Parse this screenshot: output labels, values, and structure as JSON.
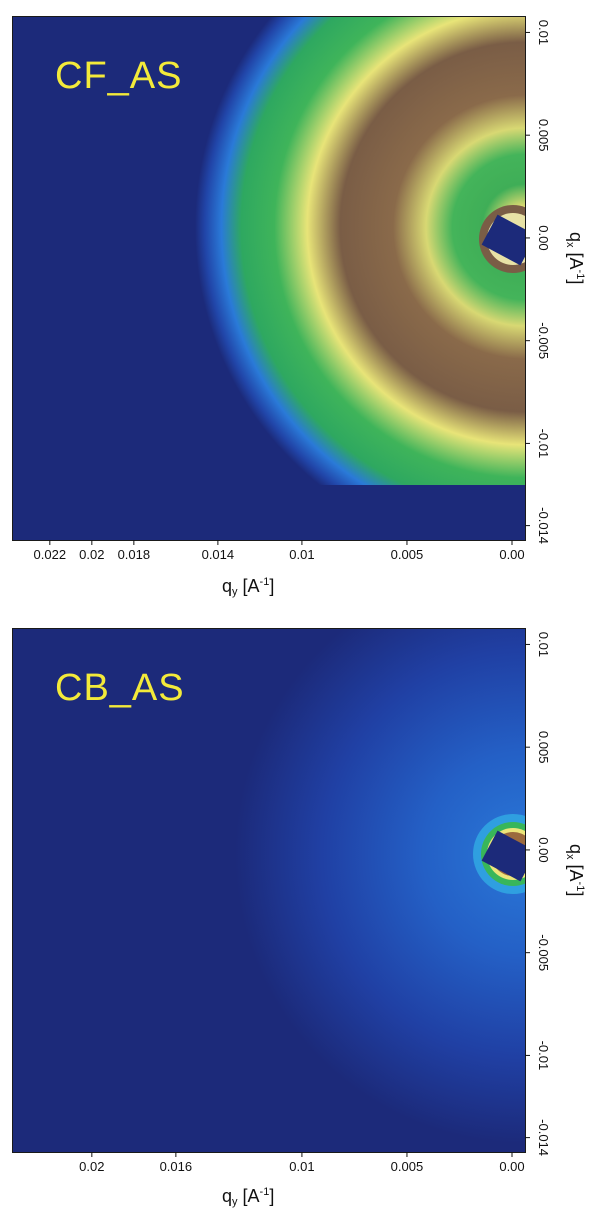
{
  "chart_data": [
    {
      "type": "heatmap",
      "sample_label": "CF_AS",
      "xlabel": {
        "base": "q",
        "sub": "y",
        "unit_open": " [A",
        "sup": "-1",
        "unit_close": "]"
      },
      "ylabel": {
        "base": "q",
        "sub": "x",
        "unit_open": " [A",
        "sup": "-1",
        "unit_close": "]"
      },
      "xaxis": {
        "direction": "reversed",
        "ticks": [
          {
            "value": 0.022,
            "label": "0.022"
          },
          {
            "value": 0.02,
            "label": "0.02"
          },
          {
            "value": 0.018,
            "label": "0.018"
          },
          {
            "value": 0.014,
            "label": "0.014"
          },
          {
            "value": 0.01,
            "label": "0.01"
          },
          {
            "value": 0.005,
            "label": "0.005"
          },
          {
            "value": 0.0,
            "label": "0.00"
          }
        ]
      },
      "yaxis": {
        "side": "right",
        "ticks": [
          {
            "value": 0.01,
            "label": "0.01"
          },
          {
            "value": 0.005,
            "label": "0.005"
          },
          {
            "value": 0.0,
            "label": "0.00"
          },
          {
            "value": -0.005,
            "label": "-0.005"
          },
          {
            "value": -0.01,
            "label": "-0.01"
          },
          {
            "value": -0.014,
            "label": "-0.014"
          }
        ]
      },
      "pattern": "intense concentric scattering rings centred at q = 0 (beam centre at right edge); outer green/yellow ring with brown high-intensity band, truncated detector at bottom",
      "colors": {
        "background": "#1c2a7a",
        "low": "#2a6fd6",
        "mid": "#33b55a",
        "high": "#f1ee7a",
        "peak": "#7b5a3e"
      }
    },
    {
      "type": "heatmap",
      "sample_label": "CB_AS",
      "xlabel": {
        "base": "q",
        "sub": "y",
        "unit_open": " [A",
        "sup": "-1",
        "unit_close": "]"
      },
      "ylabel": {
        "base": "q",
        "sub": "x",
        "unit_open": " [A",
        "sup": "-1",
        "unit_close": "]"
      },
      "xaxis": {
        "direction": "reversed",
        "ticks": [
          {
            "value": 0.02,
            "label": "0.02"
          },
          {
            "value": 0.016,
            "label": "0.016"
          },
          {
            "value": 0.01,
            "label": "0.01"
          },
          {
            "value": 0.005,
            "label": "0.005"
          },
          {
            "value": 0.0,
            "label": "0.00"
          }
        ]
      },
      "yaxis": {
        "side": "right",
        "ticks": [
          {
            "value": 0.01,
            "label": "0.01"
          },
          {
            "value": 0.005,
            "label": "0.005"
          },
          {
            "value": 0.0,
            "label": "0.00"
          },
          {
            "value": -0.005,
            "label": "-0.005"
          },
          {
            "value": -0.01,
            "label": "-0.01"
          },
          {
            "value": -0.014,
            "label": "-0.014"
          }
        ]
      },
      "pattern": "weak diffuse scattering concentrated near beam centre at right edge, small green/yellow halo around beamstop",
      "colors": {
        "background": "#1c2a7a",
        "low": "#2558c8",
        "mid": "#33b55a",
        "high": "#f1ee7a"
      }
    }
  ]
}
